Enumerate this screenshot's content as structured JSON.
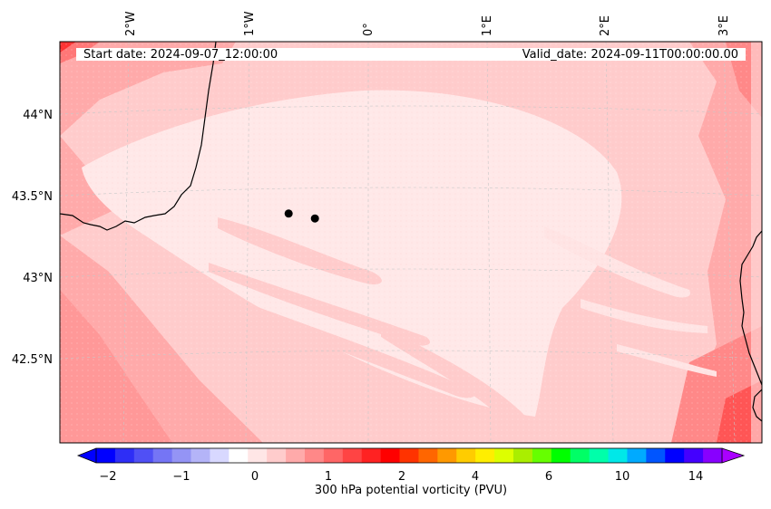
{
  "header": {
    "start_date": "Start date: 2024-09-07_12:00:00",
    "valid_date": "Valid_date: 2024-09-11T00:00:00.00"
  },
  "map": {
    "top_lon_labels": [
      "2°W",
      "1°W",
      "0°",
      "1°E",
      "2°E",
      "3°E"
    ],
    "left_lat_labels": [
      "44°N",
      "43.5°N",
      "43°N",
      "42.5°N"
    ],
    "points": [
      {
        "lon": -0.65,
        "lat": 43.39
      },
      {
        "lon": -0.43,
        "lat": 43.36
      }
    ]
  },
  "colorbar": {
    "label": "300 hPa potential vorticity (PVU)",
    "tick_labels": [
      "−2",
      "−1",
      "0",
      "1",
      "2",
      "4",
      "6",
      "10",
      "14"
    ],
    "colors": [
      "#0000ff",
      "#2e2ef6",
      "#5050f5",
      "#7575f5",
      "#9494f5",
      "#b4b4f8",
      "#d8d8ff",
      "#ffffff",
      "#ffe6e6",
      "#ffcccc",
      "#ffaaaa",
      "#ff8888",
      "#ff6666",
      "#ff4444",
      "#ff2222",
      "#ff0000",
      "#ff3300",
      "#ff6600",
      "#ff9900",
      "#ffcc00",
      "#ffee00",
      "#ddff00",
      "#aaee00",
      "#66ff00",
      "#00ff00",
      "#00ff66",
      "#00ffaa",
      "#00e8e8",
      "#00aaff",
      "#0055ff",
      "#0000ff",
      "#4400ff",
      "#8800ff"
    ],
    "arrow_left_color": "#0000ff",
    "arrow_right_color": "#aa00ff"
  }
}
